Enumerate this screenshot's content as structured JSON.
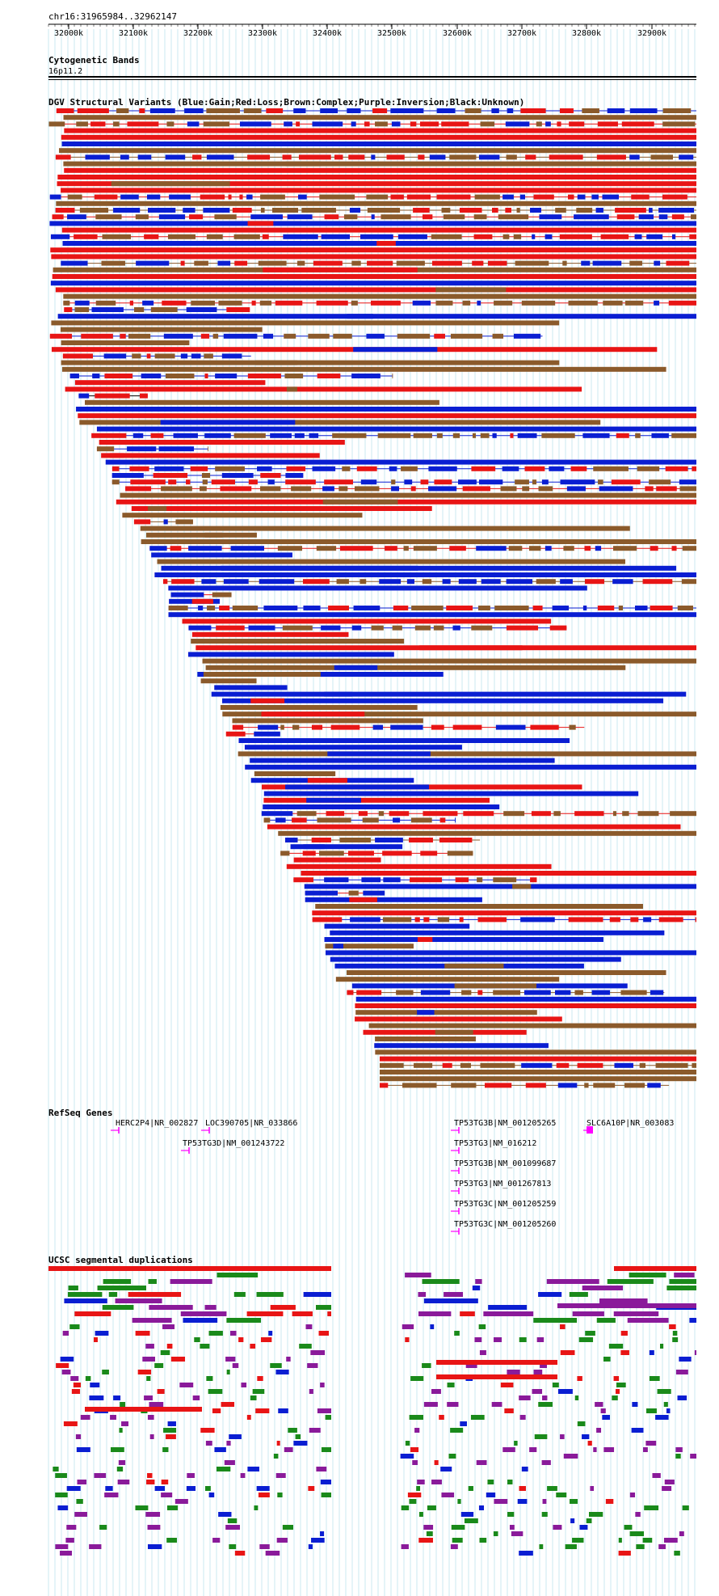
{
  "header": {
    "location": "chr16:31965984..32962147"
  },
  "ruler": {
    "ticks": [
      "32000k",
      "32100k",
      "32200k",
      "32300k",
      "32400k",
      "32500k",
      "32600k",
      "32700k",
      "32800k",
      "32900k"
    ]
  },
  "tracks": {
    "cytoband": {
      "title": "Cytogenetic Bands",
      "band": "16p11.2"
    },
    "dgv": {
      "title": "DGV Structural Variants (Blue:Gain;Red:Loss;Brown:Complex;Purple:Inversion;Black:Unknown)"
    },
    "refseq": {
      "title": "RefSeq Genes",
      "genes": [
        "HERC2P4|NR_002827",
        "LOC390705|NR_033866",
        "TP53TG3D|NM_001243722",
        "TP53TG3B|NM_001205265",
        "SLC6A10P|NR_003083",
        "TP53TG3|NM_016212",
        "TP53TG3B|NM_001099687",
        "TP53TG3|NM_001267813",
        "TP53TG3C|NM_001205259",
        "TP53TG3C|NM_001205260"
      ]
    },
    "segdup": {
      "title": "UCSC segmental duplications"
    }
  },
  "colors": {
    "gain": "#0a1ed2",
    "loss": "#e81515",
    "complex": "#8b5a2b",
    "unknown": "#000000",
    "gene": "#ff00ff",
    "segdup_green": "#1a8a1a",
    "segdup_purple": "#8a1a9a",
    "gridline": "#a8dce8"
  }
}
